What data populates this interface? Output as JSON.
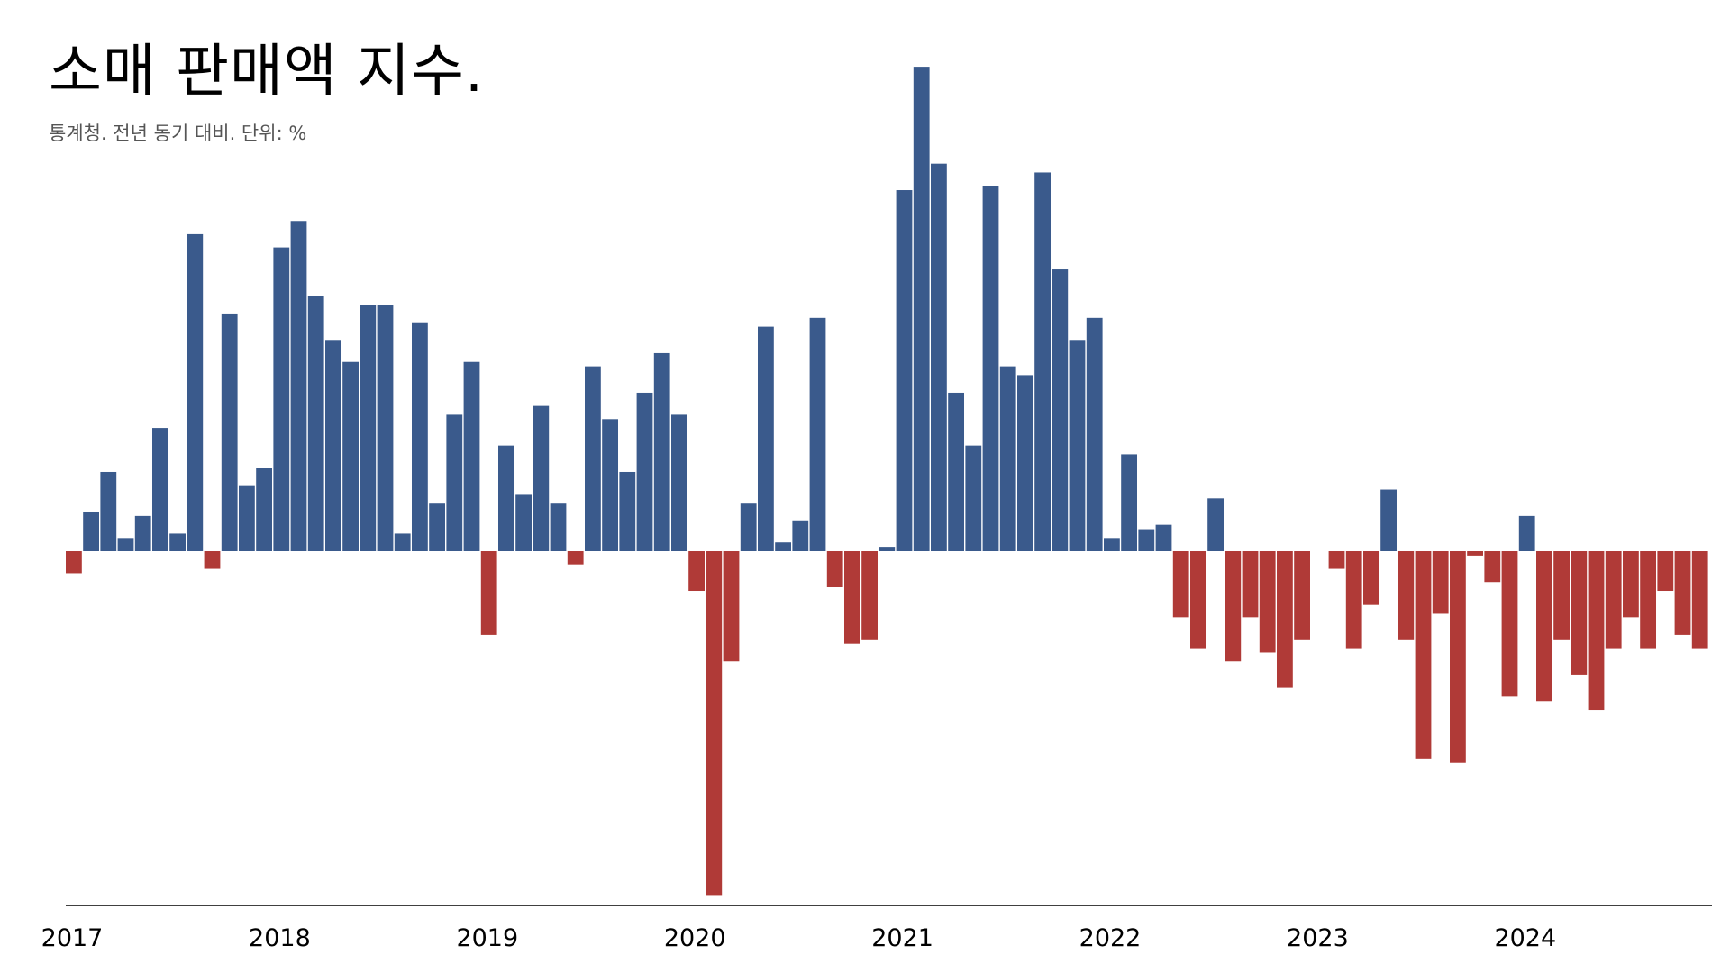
{
  "chart_data": {
    "type": "bar",
    "title": "소매 판매액 지수.",
    "subtitle": "통계청. 전년 동기 대비. 단위: %",
    "xlabel": "",
    "ylabel": "",
    "x_tick_labels": [
      "2017",
      "2018",
      "2019",
      "2020",
      "2021",
      "2022",
      "2023",
      "2024"
    ],
    "start": "2017-01",
    "frequency": "monthly",
    "ylim": [
      -8,
      11
    ],
    "positive_color": "#3a5a8c",
    "negative_color": "#b03a37",
    "axis_color": "#000000",
    "grid": false,
    "legend": "none",
    "series": [
      {
        "values": [
          -0.5,
          0.9,
          1.8,
          0.3,
          0.8,
          2.8,
          0.4,
          7.2,
          -0.4,
          5.4,
          1.5,
          1.9,
          6.9,
          7.5,
          5.8,
          4.8,
          4.3,
          5.6,
          5.6,
          0.4,
          5.2,
          1.1,
          3.1,
          4.3,
          -1.9,
          2.4,
          1.3,
          3.3,
          1.1,
          -0.3,
          4.2,
          3.0,
          1.8,
          3.6,
          4.5,
          3.1,
          -0.9,
          -7.8,
          -2.5,
          1.1,
          5.1,
          0.2,
          0.7,
          5.3,
          -0.8,
          -2.1,
          -2.0,
          0.1,
          8.2,
          11.0,
          8.8,
          3.6,
          2.4,
          8.3,
          4.2,
          4.0,
          8.6,
          6.4,
          4.8,
          5.3,
          0.3,
          2.2,
          0.5,
          0.6,
          -1.5,
          -2.2,
          1.2,
          -2.5,
          -1.5,
          -2.3,
          -3.1,
          -2.0,
          0.0,
          -0.4,
          -2.2,
          -1.2,
          1.4,
          -2.0,
          -4.7,
          -1.4,
          -4.8,
          -0.1,
          -0.7,
          -3.3,
          0.8,
          -3.4,
          -2.0,
          -2.8,
          -3.6,
          -2.2,
          -1.5,
          -2.2,
          -0.9,
          -1.9,
          -2.2
        ]
      }
    ]
  }
}
